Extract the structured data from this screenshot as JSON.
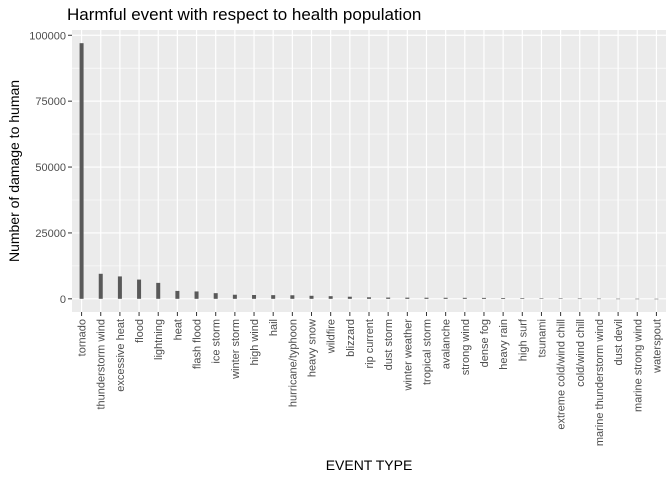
{
  "chart_data": {
    "type": "bar",
    "title": "Harmful event with respect to health population",
    "xlabel": "EVENT TYPE",
    "ylabel": "Number of damage to human",
    "ylim": [
      -5000,
      102000
    ],
    "yticks": [
      0,
      25000,
      50000,
      75000,
      100000
    ],
    "ytick_labels": [
      "0",
      "25000",
      "50000",
      "75000",
      "100000"
    ],
    "grid": true,
    "bar_color": "#595959",
    "panel_color": "#ebebeb",
    "grid_color": "#ffffff",
    "categories": [
      "tornado",
      "thunderstorm wind",
      "excessive heat",
      "flood",
      "lightning",
      "heat",
      "flash flood",
      "ice storm",
      "winter storm",
      "high wind",
      "hail",
      "hurricane/typhoon",
      "heavy snow",
      "wildfire",
      "blizzard",
      "rip current",
      "dust storm",
      "winter weather",
      "tropical storm",
      "avalanche",
      "strong wind",
      "dense fog",
      "heavy rain",
      "high surf",
      "tsunami",
      "extreme cold/wind chill",
      "cold/wind chill",
      "marine thunderstorm wind",
      "dust devil",
      "marine strong wind",
      "waterspout"
    ],
    "values": [
      97000,
      9500,
      8500,
      7300,
      6050,
      3000,
      2800,
      2150,
      1550,
      1450,
      1400,
      1350,
      1150,
      1000,
      800,
      580,
      480,
      450,
      420,
      400,
      380,
      350,
      300,
      250,
      200,
      130,
      110,
      80,
      50,
      40,
      30
    ]
  }
}
